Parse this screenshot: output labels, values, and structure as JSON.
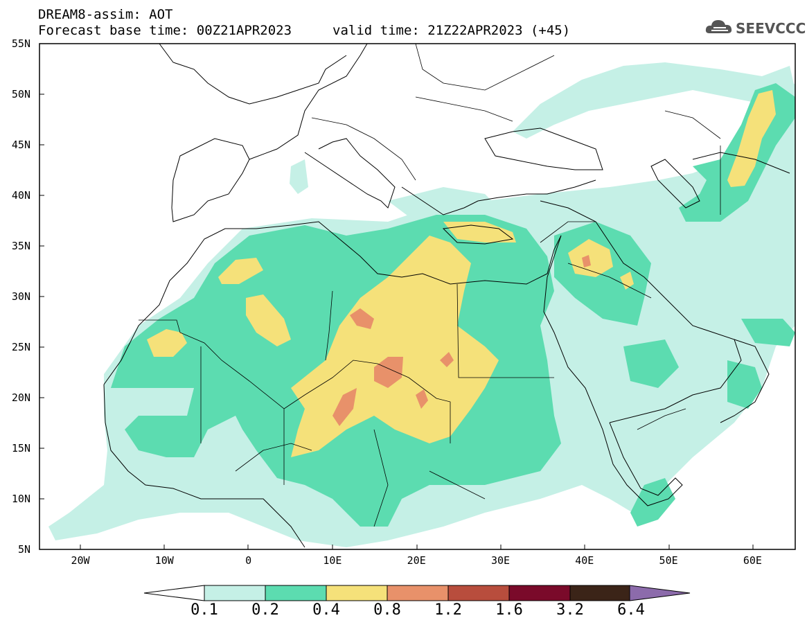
{
  "header": {
    "title": "DREAM8-assim: AOT",
    "base_time": "Forecast base time: 00Z21APR2023",
    "valid_time": "valid time: 21Z22APR2023 (+45)"
  },
  "logo": {
    "text": "SEEVCCC",
    "icon": "cloud-icon"
  },
  "axes": {
    "lat_labels": [
      "55N",
      "50N",
      "45N",
      "40N",
      "35N",
      "30N",
      "25N",
      "20N",
      "15N",
      "10N",
      "5N"
    ],
    "lon_labels": [
      "20W",
      "10W",
      "0",
      "10E",
      "20E",
      "30E",
      "40E",
      "50E",
      "60E"
    ]
  },
  "colorbar": {
    "labels": [
      "0.1",
      "0.2",
      "0.4",
      "0.8",
      "1.2",
      "1.6",
      "3.2",
      "6.4"
    ],
    "colors": [
      "#ffffff",
      "#c5f0e6",
      "#5cdcb0",
      "#f5e17a",
      "#e8916a",
      "#b84d3d",
      "#7a0a2a",
      "#3b2418",
      "#8c6bab"
    ]
  },
  "map": {
    "lon_range": [
      -25,
      65
    ],
    "lat_range": [
      5,
      55
    ],
    "field": "Aerosol Optical Thickness",
    "colors": {
      "level1": "#c5f0e6",
      "level2": "#5cdcb0",
      "level3": "#f5e17a",
      "level4": "#e8916a",
      "level5": "#c75b4a"
    }
  }
}
